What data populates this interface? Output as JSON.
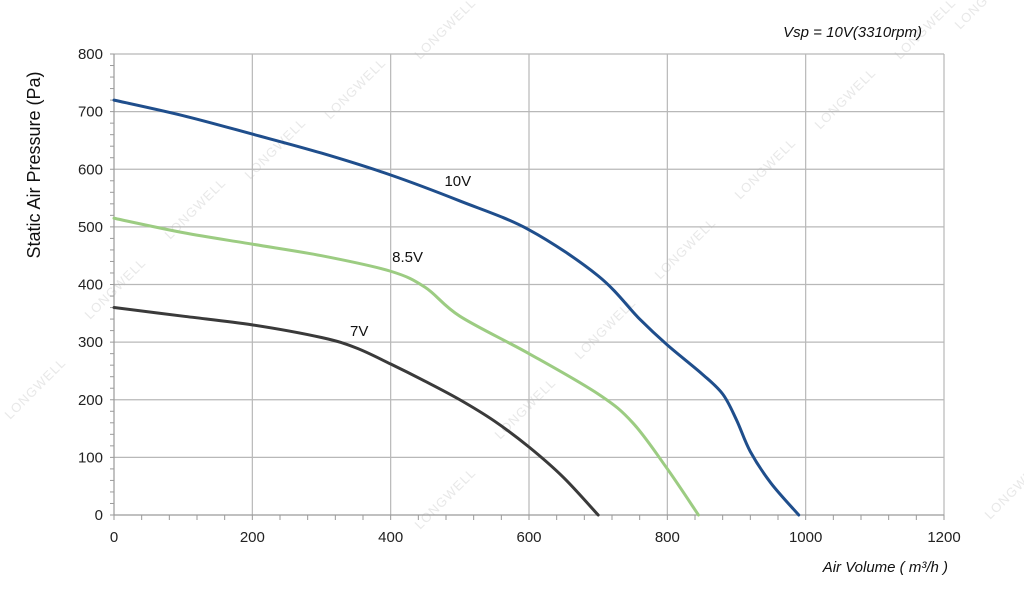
{
  "chart_data": {
    "type": "line",
    "title": "Vsp = 10V(3310rpm)",
    "xlabel": "Air Volume ( m³/h )",
    "ylabel": "Static Air Pressure  (Pa)",
    "xlim": [
      0,
      1200
    ],
    "ylim": [
      0,
      800
    ],
    "x_ticks": [
      "0",
      "200",
      "400",
      "600",
      "800",
      "1000",
      "1200"
    ],
    "y_ticks": [
      "0",
      "100",
      "200",
      "300",
      "400",
      "500",
      "600",
      "700",
      "800"
    ],
    "grid": true,
    "series": [
      {
        "name": "10V",
        "color": "#1f4e8c",
        "x": [
          0,
          100,
          200,
          300,
          400,
          500,
          600,
          700,
          760,
          800,
          850,
          880,
          900,
          920,
          950,
          990
        ],
        "y": [
          720,
          693,
          661,
          628,
          590,
          545,
          495,
          415,
          340,
          295,
          245,
          210,
          165,
          110,
          55,
          0
        ]
      },
      {
        "name": "8.5V",
        "color": "#9ccc82",
        "x": [
          0,
          100,
          200,
          300,
          400,
          450,
          500,
          600,
          700,
          750,
          800,
          845
        ],
        "y": [
          515,
          490,
          470,
          450,
          423,
          395,
          345,
          280,
          210,
          160,
          80,
          0
        ]
      },
      {
        "name": "7V",
        "color": "#3a3a3a",
        "x": [
          0,
          100,
          200,
          300,
          350,
          400,
          450,
          500,
          550,
          600,
          650,
          700
        ],
        "y": [
          360,
          345,
          330,
          308,
          290,
          262,
          232,
          200,
          163,
          118,
          65,
          0
        ]
      }
    ],
    "watermark": "LONGWELL"
  }
}
